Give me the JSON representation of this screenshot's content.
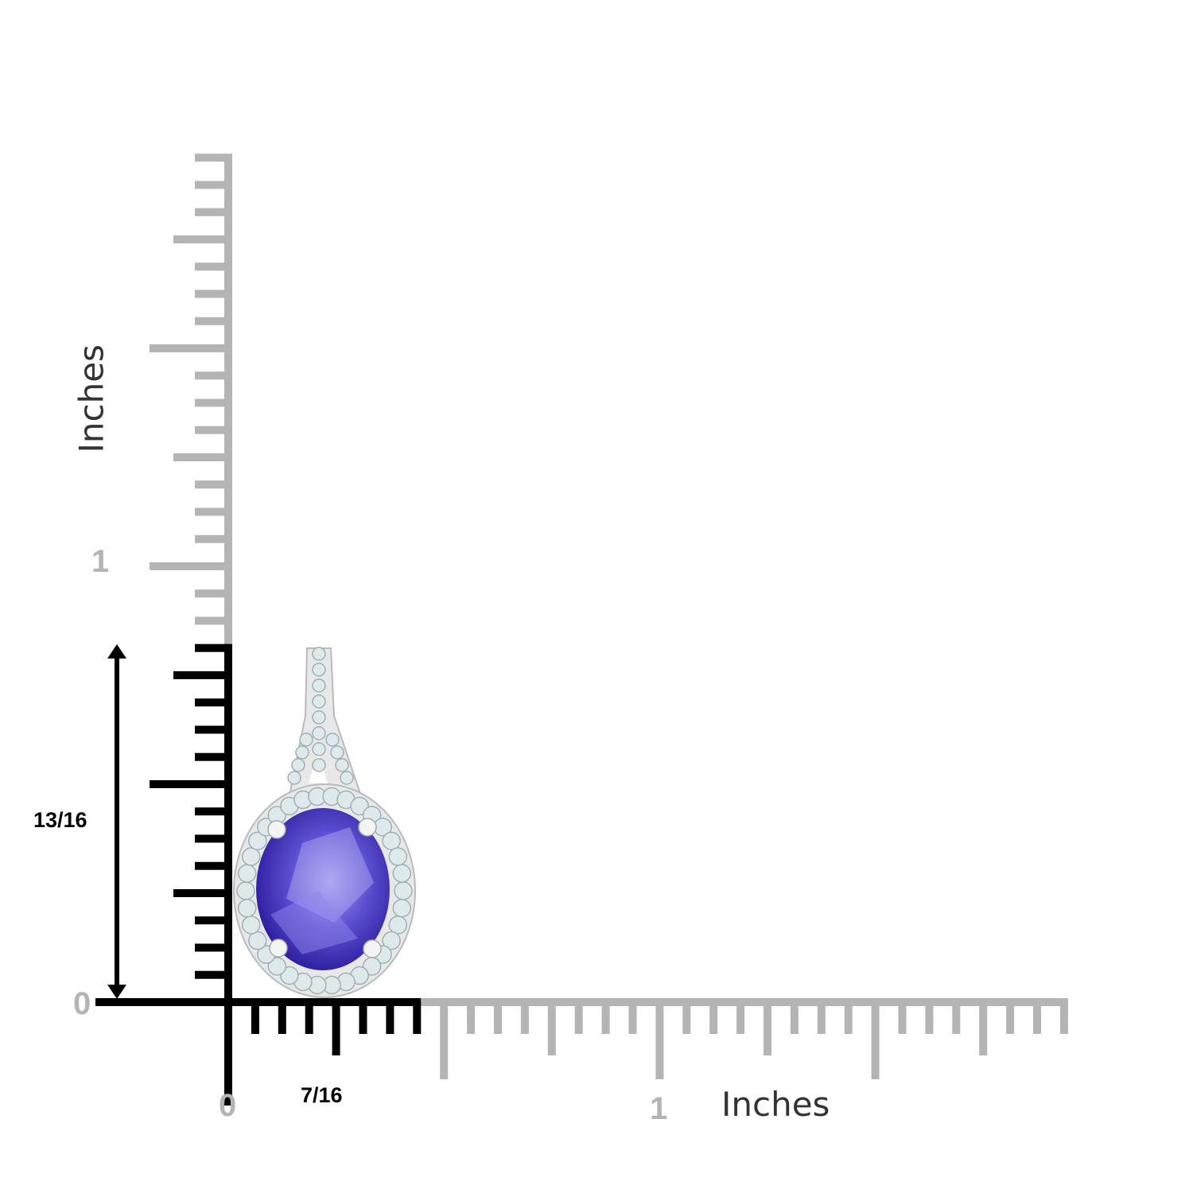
{
  "ruler": {
    "unit_label_vertical": "Inches",
    "unit_label_horizontal": "Inches",
    "subdivisions_per_inch": 16,
    "vertical_extent_sixteenths": 31,
    "horizontal_extent_sixteenths": 31,
    "vertical_labels": [
      "0",
      "1"
    ],
    "horizontal_labels": [
      "0",
      "1"
    ],
    "ruler_color": "#b4b4b4",
    "highlight_color": "#000000"
  },
  "measurements": {
    "height": "13/16",
    "height_sixteenths": 13,
    "width": "7/16",
    "width_sixteenths": 7
  },
  "product": {
    "gem_color": "#5a4fd0",
    "halo_color": "#dfe9ec",
    "metal_color": "#e8e8e8"
  }
}
